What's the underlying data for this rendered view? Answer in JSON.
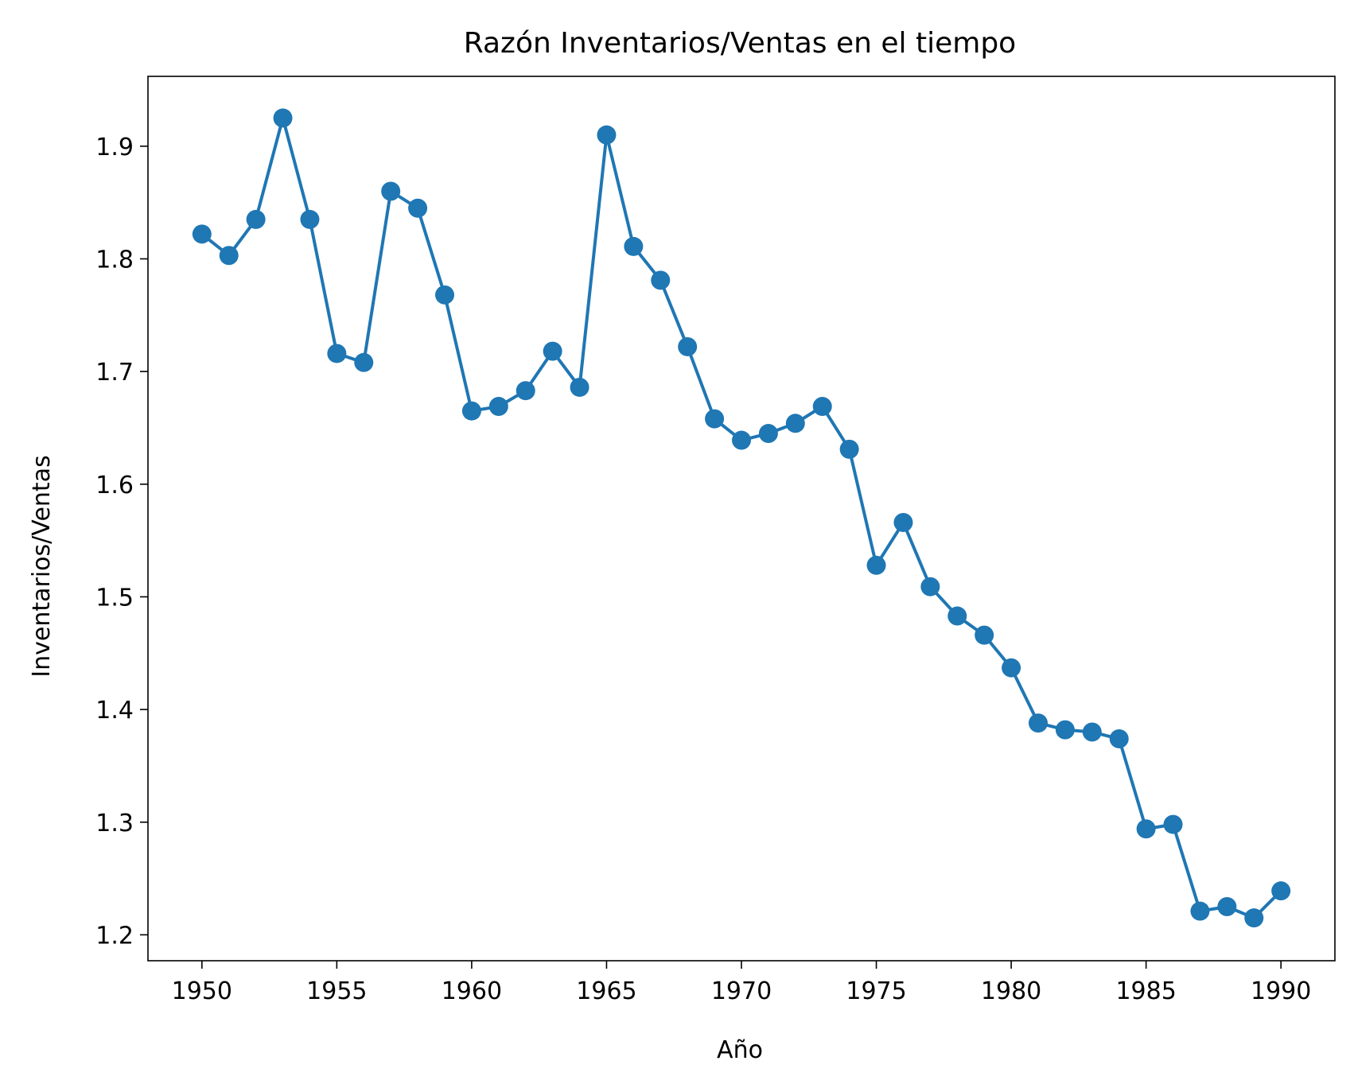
{
  "chart_data": {
    "type": "line",
    "title": "Razón Inventarios/Ventas en el tiempo",
    "xlabel": "Año",
    "ylabel": "Inventarios/Ventas",
    "xlim": [
      1948,
      1992
    ],
    "ylim": [
      1.177,
      1.962
    ],
    "grid": false,
    "line_color": "#1f77b4",
    "x_ticks": [
      1950,
      1955,
      1960,
      1965,
      1970,
      1975,
      1980,
      1985,
      1990
    ],
    "y_ticks": [
      1.2,
      1.3,
      1.4,
      1.5,
      1.6,
      1.7,
      1.8,
      1.9
    ],
    "x": [
      1950,
      1951,
      1952,
      1953,
      1954,
      1955,
      1956,
      1957,
      1958,
      1959,
      1960,
      1961,
      1962,
      1963,
      1964,
      1965,
      1966,
      1967,
      1968,
      1969,
      1970,
      1971,
      1972,
      1973,
      1974,
      1975,
      1976,
      1977,
      1978,
      1979,
      1980,
      1981,
      1982,
      1983,
      1984,
      1985,
      1986,
      1987,
      1988,
      1989,
      1990
    ],
    "y": [
      1.822,
      1.803,
      1.835,
      1.925,
      1.835,
      1.716,
      1.708,
      1.86,
      1.845,
      1.768,
      1.665,
      1.669,
      1.683,
      1.718,
      1.686,
      1.91,
      1.811,
      1.781,
      1.722,
      1.658,
      1.639,
      1.645,
      1.654,
      1.669,
      1.631,
      1.528,
      1.566,
      1.509,
      1.483,
      1.466,
      1.437,
      1.388,
      1.382,
      1.38,
      1.374,
      1.294,
      1.298,
      1.221,
      1.225,
      1.215,
      1.239
    ]
  }
}
